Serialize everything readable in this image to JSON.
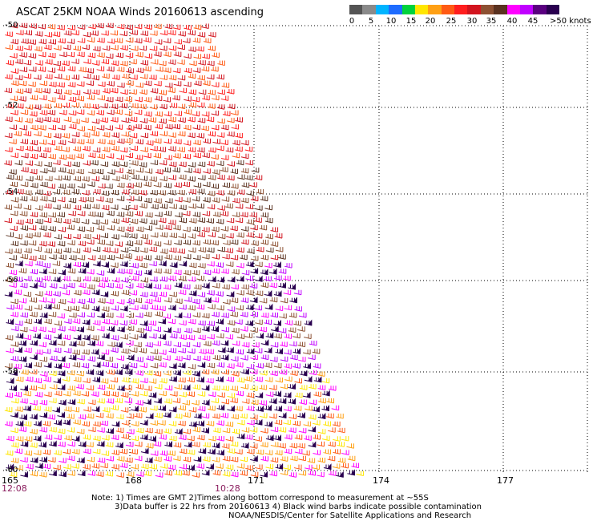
{
  "header": {
    "title": "ASCAT 25KM NOAA Winds 20160613 ascending"
  },
  "legend": {
    "colors": [
      "#545454",
      "#8a8a8a",
      "#00b4ff",
      "#1e6cff",
      "#00d23c",
      "#ffe600",
      "#ffa014",
      "#ff5a14",
      "#ff1e1e",
      "#d2141e",
      "#8c5032",
      "#5a3220",
      "#ff00ff",
      "#c000ff",
      "#5a0080",
      "#2a0050"
    ],
    "labels": [
      "0",
      "5",
      "10",
      "15",
      "20",
      "25",
      "30",
      "35",
      "40",
      "45",
      ">50 knots"
    ]
  },
  "map": {
    "lat_labels": [
      "-50",
      "-52",
      "-54",
      "-56",
      "-58",
      "-60"
    ],
    "lon_labels": [
      "165",
      "168",
      "171",
      "174",
      "177"
    ],
    "time_labels": [
      "12:08",
      "10:28"
    ],
    "swath_color_bands": [
      {
        "lat_from": -50,
        "lat_to": -53.2,
        "colors": [
          "#ff1e1e",
          "#d2141e",
          "#ff5a14"
        ]
      },
      {
        "lat_from": -53.2,
        "lat_to": -55.5,
        "colors": [
          "#8c5032",
          "#5a3220",
          "#d2141e"
        ]
      },
      {
        "lat_from": -55.5,
        "lat_to": -58,
        "colors": [
          "#c000ff",
          "#ff00ff",
          "#8c5032",
          "#2a0050"
        ]
      },
      {
        "lat_from": -58,
        "lat_to": -60.2,
        "colors": [
          "#ff5a14",
          "#ffa014",
          "#ffe600",
          "#2a0050",
          "#ff00ff"
        ]
      }
    ]
  },
  "notes": {
    "line1": "Note: 1) Times are GMT 2)Times along bottom correspond to measurement at ~55S",
    "line2": "3)Data buffer is 22 hrs from 20160613 4) Black wind barbs indicate possible contamination",
    "line3": "NOAA/NESDIS/Center for Satellite Applications and Research"
  }
}
